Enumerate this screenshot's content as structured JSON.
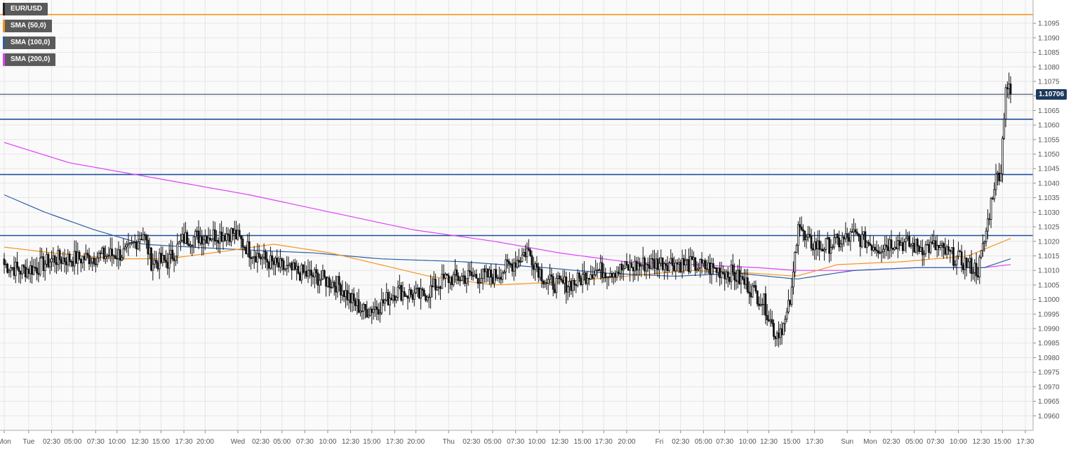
{
  "legend": [
    {
      "label": "EUR/USD",
      "color": "#222222"
    },
    {
      "label": "SMA (50,0)",
      "color": "#f7941d"
    },
    {
      "label": "SMA (100,0)",
      "color": "#2e5fa6"
    },
    {
      "label": "SMA (200,0)",
      "color": "#e040fb"
    }
  ],
  "last_price_label": "1.10706",
  "colors": {
    "sma50": "#f7941d",
    "sma100": "#2e5fa6",
    "sma200": "#e040fb",
    "levels": "#1f4f9c",
    "top_level": "#f7941d",
    "bull_fill": "#ffffff",
    "bear_fill": "#111111",
    "grid": "#e6e6e6"
  },
  "chart_data": {
    "type": "candlestick",
    "symbol": "EUR/USD",
    "grid": true,
    "ylim": [
      1.0955,
      1.1103
    ],
    "y_ticks": [
      "1.0960",
      "1.0965",
      "1.0970",
      "1.0975",
      "1.0980",
      "1.0985",
      "1.0990",
      "1.0995",
      "1.1000",
      "1.1005",
      "1.1010",
      "1.1015",
      "1.1020",
      "1.1025",
      "1.1030",
      "1.1035",
      "1.1040",
      "1.1045",
      "1.1050",
      "1.1055",
      "1.1060",
      "1.1065",
      "1.1070",
      "1.1075",
      "1.1080",
      "1.1085",
      "1.1090",
      "1.1095"
    ],
    "x_ticks": [
      {
        "i": 0,
        "label": "Mon"
      },
      {
        "i": 15,
        "label": "Tue"
      },
      {
        "i": 29,
        "label": "02:30"
      },
      {
        "i": 42,
        "label": "05:00"
      },
      {
        "i": 56,
        "label": "07:30"
      },
      {
        "i": 69,
        "label": "10:00"
      },
      {
        "i": 83,
        "label": "12:30"
      },
      {
        "i": 96,
        "label": "15:00"
      },
      {
        "i": 110,
        "label": "17:30"
      },
      {
        "i": 123,
        "label": "20:00"
      },
      {
        "i": 143,
        "label": "Wed"
      },
      {
        "i": 157,
        "label": "02:30"
      },
      {
        "i": 170,
        "label": "05:00"
      },
      {
        "i": 184,
        "label": "07:30"
      },
      {
        "i": 198,
        "label": "10:00"
      },
      {
        "i": 212,
        "label": "12:30"
      },
      {
        "i": 225,
        "label": "15:00"
      },
      {
        "i": 239,
        "label": "17:30"
      },
      {
        "i": 252,
        "label": "20:00"
      },
      {
        "i": 272,
        "label": "Thu"
      },
      {
        "i": 286,
        "label": "02:30"
      },
      {
        "i": 299,
        "label": "05:00"
      },
      {
        "i": 313,
        "label": "07:30"
      },
      {
        "i": 326,
        "label": "10:00"
      },
      {
        "i": 340,
        "label": "12:30"
      },
      {
        "i": 354,
        "label": "15:00"
      },
      {
        "i": 367,
        "label": "17:30"
      },
      {
        "i": 381,
        "label": "20:00"
      },
      {
        "i": 401,
        "label": "Fri"
      },
      {
        "i": 414,
        "label": "02:30"
      },
      {
        "i": 428,
        "label": "05:00"
      },
      {
        "i": 441,
        "label": "07:30"
      },
      {
        "i": 455,
        "label": "10:00"
      },
      {
        "i": 468,
        "label": "12:30"
      },
      {
        "i": 482,
        "label": "15:00"
      },
      {
        "i": 496,
        "label": "17:30"
      },
      {
        "i": 516,
        "label": "Sun"
      },
      {
        "i": 530,
        "label": "Mon"
      },
      {
        "i": 543,
        "label": "02:30"
      },
      {
        "i": 557,
        "label": "05:00"
      },
      {
        "i": 570,
        "label": "07:30"
      },
      {
        "i": 584,
        "label": "10:00"
      },
      {
        "i": 598,
        "label": "12:30"
      },
      {
        "i": 611,
        "label": "15:00"
      },
      {
        "i": 625,
        "label": "17:30"
      }
    ],
    "horizontal_levels": [
      {
        "value": 1.1098,
        "color": "#f7941d"
      },
      {
        "value": 1.1062,
        "color": "#1f4f9c"
      },
      {
        "value": 1.1043,
        "color": "#1f4f9c"
      },
      {
        "value": 1.1022,
        "color": "#1f4f9c"
      }
    ],
    "last_price": 1.10706,
    "close_keypoints": [
      [
        0,
        1.1012
      ],
      [
        10,
        1.101
      ],
      [
        20,
        1.1011
      ],
      [
        30,
        1.1014
      ],
      [
        45,
        1.1014
      ],
      [
        60,
        1.1015
      ],
      [
        75,
        1.1016
      ],
      [
        85,
        1.1023
      ],
      [
        90,
        1.1013
      ],
      [
        100,
        1.1013
      ],
      [
        110,
        1.1021
      ],
      [
        125,
        1.1022
      ],
      [
        140,
        1.1023
      ],
      [
        150,
        1.1017
      ],
      [
        165,
        1.1012
      ],
      [
        175,
        1.101
      ],
      [
        190,
        1.1008
      ],
      [
        205,
        1.1005
      ],
      [
        212,
        1.1
      ],
      [
        220,
        1.0996
      ],
      [
        230,
        1.0998
      ],
      [
        240,
        1.1003
      ],
      [
        255,
        1.1001
      ],
      [
        270,
        1.1007
      ],
      [
        285,
        1.1008
      ],
      [
        300,
        1.1008
      ],
      [
        315,
        1.1014
      ],
      [
        320,
        1.1017
      ],
      [
        332,
        1.1006
      ],
      [
        340,
        1.1005
      ],
      [
        350,
        1.1006
      ],
      [
        360,
        1.101
      ],
      [
        375,
        1.101
      ],
      [
        390,
        1.1012
      ],
      [
        405,
        1.1013
      ],
      [
        420,
        1.1012
      ],
      [
        430,
        1.1011
      ],
      [
        445,
        1.1009
      ],
      [
        455,
        1.1005
      ],
      [
        465,
        1.0999
      ],
      [
        472,
        1.0988
      ],
      [
        478,
        1.0992
      ],
      [
        482,
        1.1002
      ],
      [
        486,
        1.1028
      ],
      [
        490,
        1.102
      ],
      [
        500,
        1.1018
      ],
      [
        512,
        1.102
      ],
      [
        520,
        1.1022
      ],
      [
        535,
        1.1018
      ],
      [
        545,
        1.102
      ],
      [
        560,
        1.1018
      ],
      [
        570,
        1.1018
      ],
      [
        580,
        1.1015
      ],
      [
        590,
        1.1012
      ],
      [
        596,
        1.101
      ],
      [
        600,
        1.102
      ],
      [
        606,
        1.104
      ],
      [
        610,
        1.1045
      ],
      [
        613,
        1.1074
      ],
      [
        616,
        1.10706
      ]
    ],
    "candle_count": 617,
    "sma50_points": [
      [
        0,
        1.1018
      ],
      [
        30,
        1.1016
      ],
      [
        70,
        1.1014
      ],
      [
        100,
        1.1014
      ],
      [
        140,
        1.1017
      ],
      [
        165,
        1.1019
      ],
      [
        200,
        1.1016
      ],
      [
        230,
        1.1012
      ],
      [
        260,
        1.1008
      ],
      [
        300,
        1.1005
      ],
      [
        340,
        1.1006
      ],
      [
        380,
        1.1008
      ],
      [
        420,
        1.101
      ],
      [
        460,
        1.1009
      ],
      [
        485,
        1.1008
      ],
      [
        510,
        1.1012
      ],
      [
        550,
        1.1013
      ],
      [
        590,
        1.1015
      ],
      [
        616,
        1.1021
      ]
    ],
    "sma100_points": [
      [
        0,
        1.1036
      ],
      [
        25,
        1.103
      ],
      [
        55,
        1.1024
      ],
      [
        85,
        1.1019
      ],
      [
        115,
        1.1018
      ],
      [
        150,
        1.1017
      ],
      [
        190,
        1.1016
      ],
      [
        230,
        1.1014
      ],
      [
        280,
        1.1013
      ],
      [
        330,
        1.1011
      ],
      [
        370,
        1.1009
      ],
      [
        410,
        1.1008
      ],
      [
        450,
        1.1009
      ],
      [
        485,
        1.1007
      ],
      [
        520,
        1.101
      ],
      [
        560,
        1.1011
      ],
      [
        600,
        1.1011
      ],
      [
        616,
        1.1014
      ]
    ],
    "sma200_points": [
      [
        0,
        1.1054
      ],
      [
        40,
        1.1047
      ],
      [
        90,
        1.1042
      ],
      [
        150,
        1.1036
      ],
      [
        200,
        1.103
      ],
      [
        250,
        1.1024
      ],
      [
        300,
        1.102
      ],
      [
        340,
        1.1016
      ],
      [
        380,
        1.1013
      ],
      [
        420,
        1.1012
      ],
      [
        460,
        1.1011
      ],
      [
        485,
        1.101
      ],
      [
        520,
        1.101
      ],
      [
        560,
        1.1011
      ],
      [
        600,
        1.1011
      ],
      [
        616,
        1.1012
      ]
    ]
  }
}
